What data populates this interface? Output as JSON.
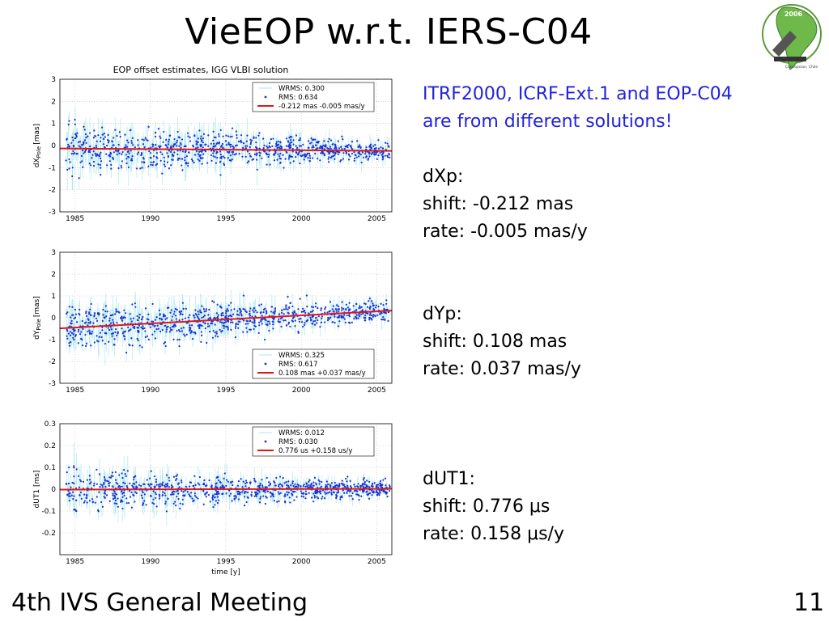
{
  "slide": {
    "title": "VieEOP w.r.t. IERS-C04",
    "footer_left": "4th IVS General Meeting",
    "footer_right": "11",
    "logo": {
      "year": "2006",
      "icon": "ivs-meeting-logo",
      "caption": "Concepcion, Chile"
    }
  },
  "notes": {
    "headline_line1": "ITRF2000, ICRF-Ext.1 and EOP-C04",
    "headline_line2": "are from different solutions!",
    "headline_color": "#2222dd",
    "dxp": {
      "label": "dXp:",
      "shift": "shift: -0.212 mas",
      "rate": "rate: -0.005 mas/y"
    },
    "dyp": {
      "label": "dYp:",
      "shift": "shift: 0.108 mas",
      "rate": "rate: 0.037 mas/y"
    },
    "dut1": {
      "label": "dUT1:",
      "shift": "shift: 0.776 μs",
      "rate": "rate: 0.158 μs/y"
    }
  },
  "chart_data": [
    {
      "type": "scatter",
      "title": "EOP offset estimates, IGG VLBI solution",
      "ylabel": "dX",
      "ylabel_sub": "Pole",
      "ylabel_unit": "[mas]",
      "xlabel": "",
      "xlim": [
        1984,
        2006
      ],
      "ylim": [
        -3,
        3
      ],
      "xticks": [
        1985,
        1990,
        1995,
        2000,
        2005
      ],
      "yticks": [
        -3,
        -2,
        -1,
        0,
        1,
        2,
        3
      ],
      "grid": true,
      "legend_position": "top-right",
      "legend": [
        "WRMS: 0.300",
        "RMS:  0.634",
        "-0.212 mas -0.005 mas/y"
      ],
      "trend": {
        "offset": -0.212,
        "rate": -0.005,
        "ref_year": 2000
      },
      "spread": 0.6,
      "point_color": "#1a2fd6",
      "errorbar_color": "#aee8ee",
      "trend_color": "#e0161a"
    },
    {
      "type": "scatter",
      "title": "",
      "ylabel": "dY",
      "ylabel_sub": "Pole",
      "ylabel_unit": "[mas]",
      "xlabel": "",
      "xlim": [
        1984,
        2006
      ],
      "ylim": [
        -3,
        3
      ],
      "xticks": [
        1985,
        1990,
        1995,
        2000,
        2005
      ],
      "yticks": [
        -3,
        -2,
        -1,
        0,
        1,
        2,
        3
      ],
      "grid": true,
      "legend_position": "bottom-right",
      "legend": [
        "WRMS: 0.325",
        "RMS:  0.617",
        "0.108 mas +0.037 mas/y"
      ],
      "trend": {
        "offset": 0.108,
        "rate": 0.037,
        "ref_year": 2000
      },
      "spread": 0.6,
      "point_color": "#1a2fd6",
      "errorbar_color": "#aee8ee",
      "trend_color": "#e0161a"
    },
    {
      "type": "scatter",
      "title": "",
      "ylabel": "dUT1 [ms]",
      "ylabel_sub": "",
      "ylabel_unit": "",
      "xlabel": "time [y]",
      "xlim": [
        1984,
        2006
      ],
      "ylim": [
        -0.3,
        0.3
      ],
      "xticks": [
        1985,
        1990,
        1995,
        2000,
        2005
      ],
      "yticks": [
        -0.2,
        -0.1,
        0,
        0.1,
        0.2,
        0.3
      ],
      "grid": true,
      "legend_position": "top-right",
      "legend": [
        "WRMS: 0.012",
        "RMS:  0.030",
        "0.776 us +0.158 us/y"
      ],
      "trend": {
        "offset": 0.000776,
        "rate": 0.000158,
        "ref_year": 2000
      },
      "spread": 0.05,
      "point_color": "#1a2fd6",
      "errorbar_color": "#aee8ee",
      "trend_color": "#e0161a"
    }
  ]
}
